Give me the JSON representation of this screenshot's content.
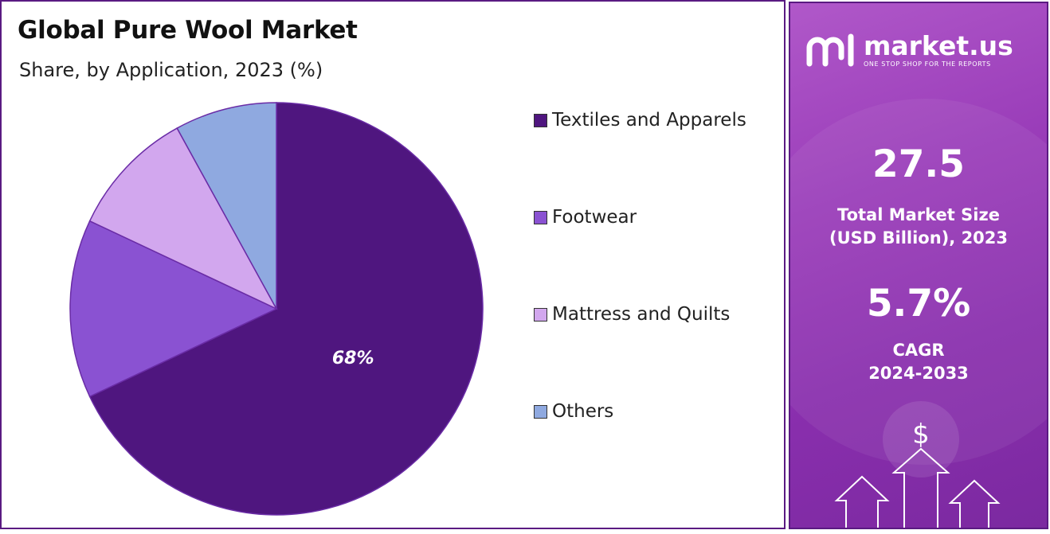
{
  "title": "Global Pure Wool Market",
  "subtitle": "Share, by Application, 2023 (%)",
  "chart_data": {
    "type": "pie",
    "title": "Global Pure Wool Market",
    "subtitle": "Share, by Application, 2023 (%)",
    "labels": [
      "Textiles and Apparels",
      "Footwear",
      "Mattress and Quilts",
      "Others"
    ],
    "values": [
      68,
      14,
      10,
      8
    ],
    "value_labels": [
      "68%",
      "",
      "",
      ""
    ],
    "colors": [
      "#4f167f",
      "#8a52d2",
      "#d2a7ee",
      "#8fa9e0"
    ],
    "legend_position": "right"
  },
  "sidebar": {
    "brand_name": "market.us",
    "brand_tagline": "ONE STOP SHOP FOR THE REPORTS",
    "market_size_value": "27.5",
    "market_size_label_1": "Total Market Size",
    "market_size_label_2": "(USD Billion), 2023",
    "cagr_value": "5.7%",
    "cagr_label_1": "CAGR",
    "cagr_label_2": "2024-2033",
    "deco_symbol": "$"
  }
}
